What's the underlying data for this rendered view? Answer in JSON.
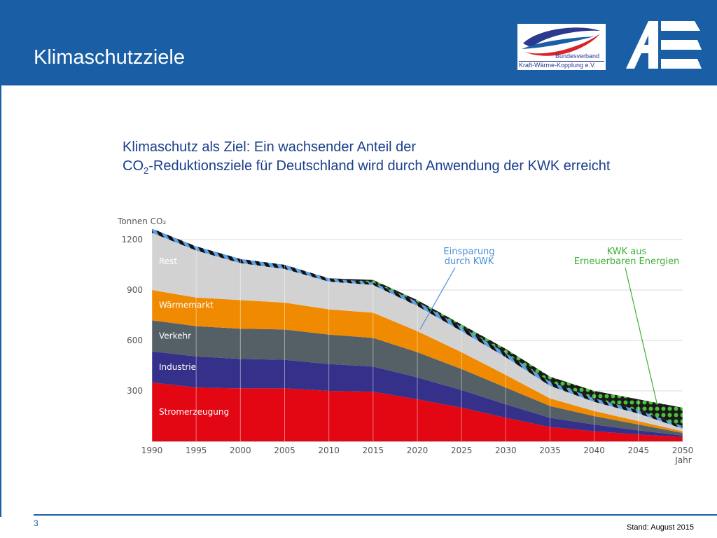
{
  "slide": {
    "title": "Klimaschutzziele",
    "subtitle_line1": "Klimaschutz als Ziel: Ein wachsender Anteil der",
    "subtitle_co": "CO",
    "subtitle_sub": "2",
    "subtitle_line2_rest": "-Reduktionsziele für Deutschland wird durch Anwendung der KWK erreicht",
    "page_number": "3",
    "stand": "Stand: August 2015"
  },
  "logos": {
    "bkwk_line1": "Bundesverband",
    "bkwk_line2": "Kraft-Wärme-Kopplung e.V.",
    "ae_icon": "ae-logo-icon"
  },
  "colors": {
    "header": "#1a5fa6",
    "stromerzeugung": "#e30613",
    "industrie": "#35318a",
    "verkehr": "#555f66",
    "waermemarkt": "#f08a00",
    "rest": "#d2d2d2",
    "einsparung": "#4a90d9",
    "kwk_ee": "#3cb034"
  },
  "chart_data": {
    "type": "area",
    "stacked": true,
    "ylabel": "Tonnen CO₂",
    "xlabel": "Jahr",
    "ylim": [
      0,
      1250
    ],
    "yticks": [
      300,
      600,
      900,
      1200
    ],
    "x": [
      1990,
      1995,
      2000,
      2005,
      2010,
      2015,
      2020,
      2025,
      2030,
      2035,
      2040,
      2045,
      2050
    ],
    "series": [
      {
        "name": "Stromerzeugung",
        "values": [
          350,
          320,
          315,
          315,
          300,
          295,
          250,
          200,
          140,
          85,
          60,
          40,
          25
        ]
      },
      {
        "name": "Industrie",
        "values": [
          185,
          185,
          175,
          170,
          160,
          150,
          130,
          105,
          80,
          55,
          40,
          25,
          10
        ]
      },
      {
        "name": "Verkehr",
        "values": [
          185,
          180,
          180,
          180,
          175,
          170,
          150,
          125,
          100,
          70,
          50,
          35,
          15
        ]
      },
      {
        "name": "Wärmemarkt",
        "values": [
          180,
          170,
          170,
          160,
          150,
          150,
          125,
          100,
          75,
          45,
          30,
          20,
          10
        ]
      },
      {
        "name": "Rest",
        "values": [
          340,
          280,
          220,
          200,
          165,
          165,
          150,
          125,
          105,
          75,
          55,
          45,
          15
        ]
      },
      {
        "name": "Einsparung durch KWK",
        "values": [
          25,
          25,
          25,
          25,
          20,
          15,
          25,
          25,
          25,
          25,
          20,
          20,
          15
        ]
      },
      {
        "name": "KWK aus Erneuerbaren Energien",
        "values": [
          0,
          0,
          0,
          0,
          0,
          15,
          10,
          15,
          25,
          30,
          45,
          65,
          110
        ]
      }
    ],
    "area_labels": [
      "Rest",
      "Wärmemarkt",
      "Verkehr",
      "Industrie",
      "Stromerzeugung"
    ],
    "callouts": {
      "einsparung_line1": "Einsparung",
      "einsparung_line2": "durch KWK",
      "kwk_line1": "KWK aus",
      "kwk_line2": "Erneuerbaren Energien"
    },
    "grid": true
  }
}
